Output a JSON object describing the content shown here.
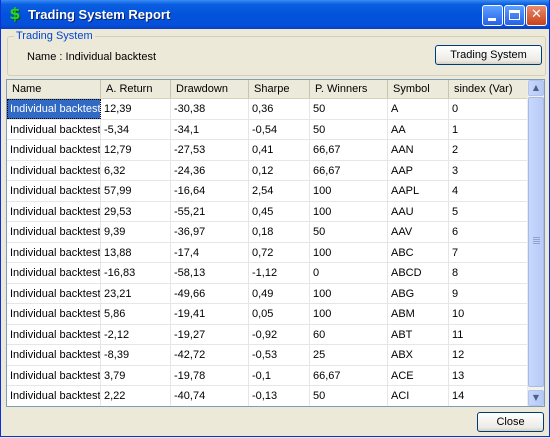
{
  "window": {
    "title": "Trading System Report",
    "icon": "dollar-sign-icon"
  },
  "group": {
    "legend": "Trading System",
    "name_label": "Name : Individual backtest",
    "button_label": "Trading System"
  },
  "table": {
    "columns": [
      "Name",
      "A. Return",
      "Drawdown",
      "Sharpe",
      "P. Winners",
      "Symbol",
      "sindex (Var)"
    ],
    "rows": [
      [
        "Individual backtest",
        "12,39",
        "-30,38",
        "0,36",
        "50",
        "A",
        "0"
      ],
      [
        "Individual backtest",
        "-5,34",
        "-34,1",
        "-0,54",
        "50",
        "AA",
        "1"
      ],
      [
        "Individual backtest",
        "12,79",
        "-27,53",
        "0,41",
        "66,67",
        "AAN",
        "2"
      ],
      [
        "Individual backtest",
        "6,32",
        "-24,36",
        "0,12",
        "66,67",
        "AAP",
        "3"
      ],
      [
        "Individual backtest",
        "57,99",
        "-16,64",
        "2,54",
        "100",
        "AAPL",
        "4"
      ],
      [
        "Individual backtest",
        "29,53",
        "-55,21",
        "0,45",
        "100",
        "AAU",
        "5"
      ],
      [
        "Individual backtest",
        "9,39",
        "-36,97",
        "0,18",
        "50",
        "AAV",
        "6"
      ],
      [
        "Individual backtest",
        "13,88",
        "-17,4",
        "0,72",
        "100",
        "ABC",
        "7"
      ],
      [
        "Individual backtest",
        "-16,83",
        "-58,13",
        "-1,12",
        "0",
        "ABCD",
        "8"
      ],
      [
        "Individual backtest",
        "23,21",
        "-49,66",
        "0,49",
        "100",
        "ABG",
        "9"
      ],
      [
        "Individual backtest",
        "5,86",
        "-19,41",
        "0,05",
        "100",
        "ABM",
        "10"
      ],
      [
        "Individual backtest",
        "-2,12",
        "-19,27",
        "-0,92",
        "60",
        "ABT",
        "11"
      ],
      [
        "Individual backtest",
        "-8,39",
        "-42,72",
        "-0,53",
        "25",
        "ABX",
        "12"
      ],
      [
        "Individual backtest",
        "3,79",
        "-19,78",
        "-0,1",
        "66,67",
        "ACE",
        "13"
      ],
      [
        "Individual backtest",
        "2,22",
        "-40,74",
        "-0,13",
        "50",
        "ACI",
        "14"
      ]
    ]
  },
  "footer": {
    "close_label": "Close"
  }
}
